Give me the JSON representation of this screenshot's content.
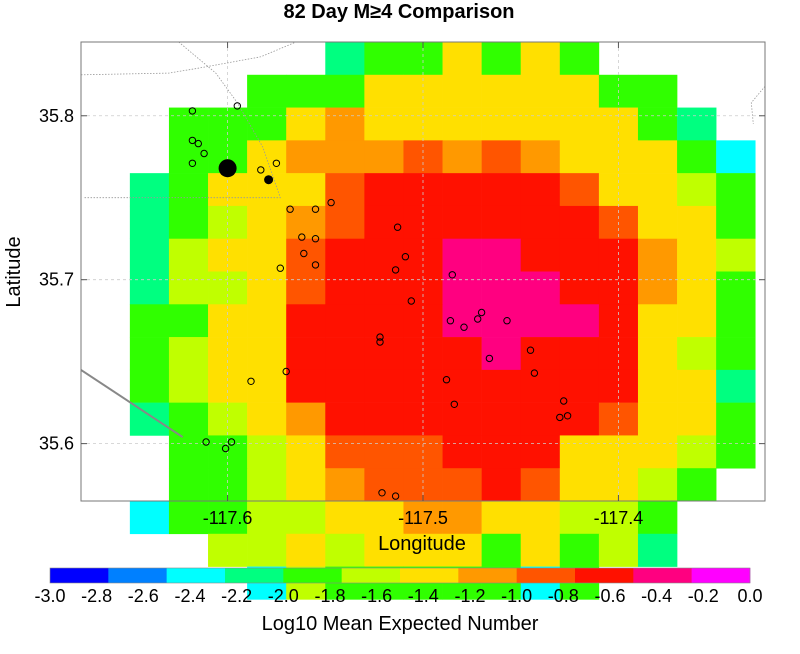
{
  "chart_data": {
    "type": "heatmap",
    "title": "82 Day M≥4 Comparison",
    "xlabel": "Longitude",
    "ylabel": "Latitude",
    "xlim": [
      -117.675,
      -117.325
    ],
    "ylim": [
      35.565,
      35.845
    ],
    "x_ticks": [
      -117.6,
      -117.5,
      -117.4
    ],
    "x_tick_labels": [
      "-117.6",
      "-117.5",
      "-117.4"
    ],
    "y_ticks": [
      35.6,
      35.7,
      35.8
    ],
    "y_tick_labels": [
      "35.6",
      "35.7",
      "35.8"
    ],
    "grid": true,
    "colorbar": {
      "label": "Log10 Mean Expected Number",
      "min": -3.0,
      "max": 0.0,
      "tick_labels": [
        "-3.0",
        "-2.8",
        "-2.6",
        "-2.4",
        "-2.2",
        "-2.0",
        "-1.8",
        "-1.6",
        "-1.4",
        "-1.2",
        "-1.0",
        "-0.8",
        "-0.6",
        "-0.4",
        "-0.2",
        "0.0"
      ],
      "colors": [
        "#0000ff",
        "#0080ff",
        "#00ffff",
        "#00ff80",
        "#30ff00",
        "#c0ff00",
        "#ffe000",
        "#ff9900",
        "#ff5500",
        "#ff1100",
        "#ff0080",
        "#ff00ff"
      ]
    },
    "grid_origin": [
      -117.67,
      35.845
    ],
    "cell_size": [
      0.02,
      0.02
    ],
    "grid_values": [
      [
        null,
        null,
        null,
        null,
        null,
        null,
        -2.1,
        -1.9,
        -1.9,
        -1.5,
        -1.9,
        -1.5,
        -1.9,
        null,
        null,
        null,
        null
      ],
      [
        null,
        null,
        null,
        null,
        -1.9,
        -1.9,
        -1.9,
        -1.5,
        -1.5,
        -1.5,
        -1.5,
        -1.5,
        -1.5,
        -1.9,
        -1.9,
        null,
        null
      ],
      [
        null,
        null,
        -1.9,
        -1.9,
        -1.9,
        -1.5,
        -1.1,
        -1.5,
        -1.5,
        -1.5,
        -1.5,
        -1.5,
        -1.5,
        -1.5,
        -1.9,
        -2.1,
        null
      ],
      [
        null,
        null,
        -1.9,
        -1.9,
        -1.5,
        -1.1,
        -1.1,
        -1.1,
        -0.9,
        -1.1,
        -0.9,
        -1.1,
        -1.5,
        -1.5,
        -1.5,
        -1.9,
        -2.5
      ],
      [
        null,
        -2.1,
        -1.9,
        -1.5,
        -1.5,
        -1.3,
        -0.9,
        -0.7,
        -0.7,
        -0.7,
        -0.7,
        -0.7,
        -0.9,
        -1.3,
        -1.5,
        -1.7,
        -1.9
      ],
      [
        null,
        -2.1,
        -1.9,
        -1.7,
        -1.3,
        -1.1,
        -0.9,
        -0.7,
        -0.7,
        -0.7,
        -0.7,
        -0.7,
        -0.7,
        -0.9,
        -1.3,
        -1.5,
        -1.9
      ],
      [
        null,
        -2.1,
        -1.7,
        -1.5,
        -1.3,
        -0.9,
        -0.7,
        -0.7,
        -0.7,
        -0.5,
        -0.5,
        -0.7,
        -0.7,
        -0.7,
        -1.1,
        -1.5,
        -1.7
      ],
      [
        null,
        -2.1,
        -1.7,
        -1.7,
        -1.3,
        -0.9,
        -0.7,
        -0.7,
        -0.7,
        -0.5,
        -0.5,
        -0.5,
        -0.7,
        -0.7,
        -1.1,
        -1.5,
        -1.9
      ],
      [
        null,
        -1.9,
        -1.9,
        -1.5,
        -1.3,
        -0.7,
        -0.7,
        -0.7,
        -0.7,
        -0.5,
        -0.5,
        -0.5,
        -0.5,
        -0.7,
        -1.3,
        -1.5,
        -1.9
      ],
      [
        null,
        -1.9,
        -1.7,
        -1.5,
        -1.3,
        -0.7,
        -0.7,
        -0.7,
        -0.7,
        -0.7,
        -0.5,
        -0.7,
        -0.7,
        -0.7,
        -1.3,
        -1.7,
        -1.9
      ],
      [
        null,
        -1.9,
        -1.7,
        -1.5,
        -1.3,
        -0.7,
        -0.7,
        -0.7,
        -0.7,
        -0.7,
        -0.7,
        -0.7,
        -0.7,
        -0.7,
        -1.3,
        -1.5,
        -2.1
      ],
      [
        null,
        -2.1,
        -1.9,
        -1.7,
        -1.5,
        -1.1,
        -0.7,
        -0.7,
        -0.7,
        -0.7,
        -0.7,
        -0.7,
        -0.7,
        -0.9,
        -1.3,
        -1.5,
        -1.9
      ],
      [
        null,
        null,
        -1.9,
        -1.9,
        -1.7,
        -1.5,
        -0.9,
        -0.9,
        -0.9,
        -0.7,
        -0.7,
        -0.7,
        -1.3,
        -1.5,
        -1.5,
        -1.7,
        -1.9
      ],
      [
        null,
        null,
        -1.9,
        -1.9,
        -1.7,
        -1.5,
        -1.1,
        -0.9,
        -0.9,
        -0.9,
        -0.7,
        -0.9,
        -1.5,
        -1.5,
        -1.7,
        -1.9,
        null
      ],
      [
        null,
        -2.5,
        -1.9,
        -1.9,
        -1.7,
        -1.7,
        -1.5,
        -1.5,
        -1.1,
        -1.1,
        -1.5,
        -1.5,
        -1.7,
        -1.7,
        -1.9,
        null,
        null
      ],
      [
        null,
        null,
        null,
        -1.7,
        -1.7,
        -1.5,
        -1.7,
        -1.5,
        -1.5,
        -1.5,
        -1.9,
        -1.5,
        -1.9,
        -1.7,
        -2.1,
        null,
        null
      ],
      [
        null,
        null,
        null,
        null,
        -2.5,
        -1.7,
        -1.9,
        -1.9,
        -1.9,
        -1.9,
        -1.9,
        -2.5,
        -1.9,
        null,
        null,
        null,
        null
      ]
    ],
    "events": {
      "small": [
        [
          -117.618,
          35.803
        ],
        [
          -117.595,
          35.806
        ],
        [
          -117.618,
          35.785
        ],
        [
          -117.615,
          35.783
        ],
        [
          -117.612,
          35.777
        ],
        [
          -117.618,
          35.771
        ],
        [
          -117.583,
          35.767
        ],
        [
          -117.575,
          35.771
        ],
        [
          -117.568,
          35.743
        ],
        [
          -117.555,
          35.743
        ],
        [
          -117.547,
          35.747
        ],
        [
          -117.562,
          35.726
        ],
        [
          -117.555,
          35.725
        ],
        [
          -117.561,
          35.716
        ],
        [
          -117.555,
          35.709
        ],
        [
          -117.573,
          35.707
        ],
        [
          -117.513,
          35.732
        ],
        [
          -117.509,
          35.714
        ],
        [
          -117.514,
          35.706
        ],
        [
          -117.506,
          35.687
        ],
        [
          -117.485,
          35.703
        ],
        [
          -117.486,
          35.675
        ],
        [
          -117.479,
          35.671
        ],
        [
          -117.472,
          35.676
        ],
        [
          -117.47,
          35.68
        ],
        [
          -117.457,
          35.675
        ],
        [
          -117.466,
          35.652
        ],
        [
          -117.522,
          35.665
        ],
        [
          -117.522,
          35.662
        ],
        [
          -117.445,
          35.657
        ],
        [
          -117.443,
          35.643
        ],
        [
          -117.488,
          35.639
        ],
        [
          -117.484,
          35.624
        ],
        [
          -117.428,
          35.626
        ],
        [
          -117.426,
          35.617
        ],
        [
          -117.43,
          35.616
        ],
        [
          -117.57,
          35.644
        ],
        [
          -117.588,
          35.638
        ],
        [
          -117.611,
          35.601
        ],
        [
          -117.598,
          35.601
        ],
        [
          -117.601,
          35.597
        ],
        [
          -117.521,
          35.57
        ],
        [
          -117.514,
          35.568
        ]
      ],
      "medium": [
        [
          -117.579,
          35.761
        ]
      ],
      "large": [
        [
          -117.6,
          35.768
        ]
      ]
    },
    "faults": [
      [
        [
          -117.675,
          35.825
        ],
        [
          -117.63,
          35.826
        ],
        [
          -117.615,
          35.829
        ],
        [
          -117.583,
          35.836
        ],
        [
          -117.565,
          35.845
        ]
      ],
      [
        [
          -117.625,
          35.845
        ],
        [
          -117.606,
          35.826
        ],
        [
          -117.595,
          35.808
        ],
        [
          -117.582,
          35.781
        ],
        [
          -117.573,
          35.75
        ],
        [
          -117.674,
          35.75
        ]
      ],
      [
        [
          -117.675,
          35.645
        ],
        [
          -117.623,
          35.604
        ]
      ],
      [
        [
          -117.325,
          35.818
        ],
        [
          -117.332,
          35.808
        ],
        [
          -117.331,
          35.795
        ]
      ]
    ]
  }
}
